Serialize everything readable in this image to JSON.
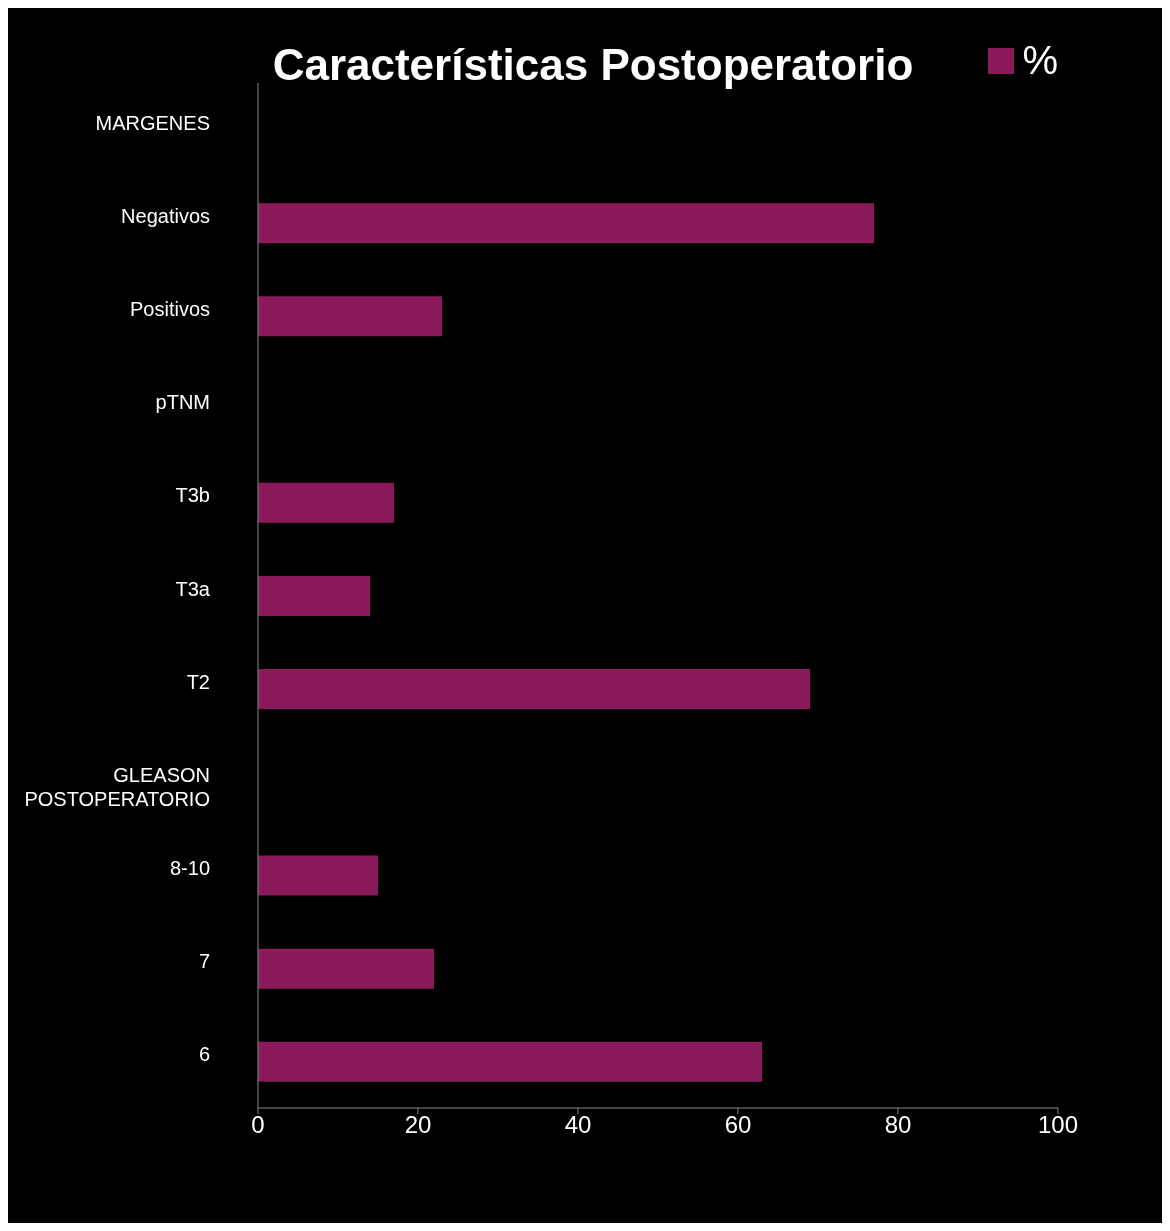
{
  "chart_data": {
    "type": "bar",
    "title": "Características Postoperatorio",
    "orientation": "horizontal",
    "categories": [
      "MARGENES",
      "Negativos",
      "Positivos",
      "pTNM",
      "T3b",
      "T3a",
      "T2",
      "GLEASON POSTOPERATORIO",
      "8-10",
      "7",
      "6"
    ],
    "series": [
      {
        "name": "%",
        "color": "#8b1a5a",
        "values": [
          null,
          77,
          23,
          null,
          17,
          14,
          69,
          null,
          15,
          22,
          63
        ]
      }
    ],
    "xlim": [
      0,
      100
    ],
    "xticks": [
      0,
      20,
      40,
      60,
      80,
      100
    ],
    "legend": "top right"
  }
}
